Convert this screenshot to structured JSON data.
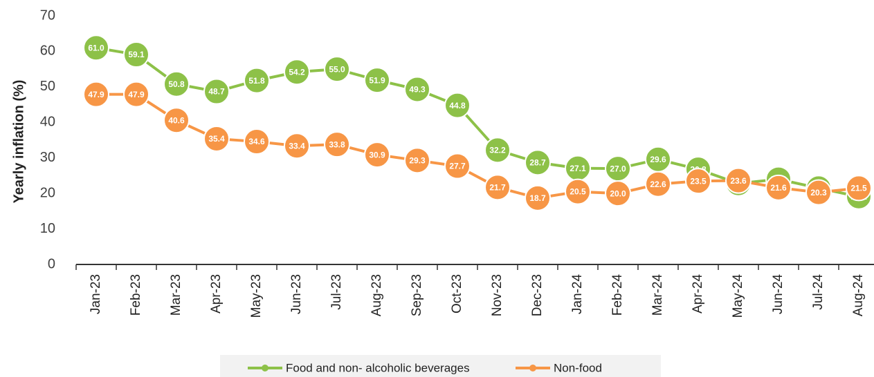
{
  "chart_data": {
    "type": "line",
    "y_label": "Yearly inflation (%)",
    "categories": [
      "Jan-23",
      "Feb-23",
      "Mar-23",
      "Apr-23",
      "May-23",
      "Jun-23",
      "Jul-23",
      "Aug-23",
      "Sep-23",
      "Oct-23",
      "Nov-23",
      "Dec-23",
      "Jan-24",
      "Feb-24",
      "Mar-24",
      "Apr-24",
      "May-24",
      "Jun-24",
      "Jul-24",
      "Aug-24"
    ],
    "series": [
      {
        "name": "Food and non- alcoholic beverages",
        "color": "#8dc148",
        "values": [
          61.0,
          59.1,
          50.8,
          48.7,
          51.8,
          54.2,
          55.0,
          51.9,
          49.3,
          44.8,
          32.2,
          28.7,
          27.1,
          27.0,
          29.6,
          26.8,
          22.8,
          24.0,
          21.5,
          19.1
        ],
        "value_labels": [
          "61.0",
          "59.1",
          "50.8",
          "48.7",
          "51.8",
          "54.2",
          "55.0",
          "51.9",
          "49.3",
          "44.8",
          "32.2",
          "28.7",
          "27.1",
          "27.0",
          "29.6",
          "26.8",
          "22.8",
          "24.0",
          "21.5",
          "19.1"
        ]
      },
      {
        "name": "Non-food",
        "color": "#f79646",
        "values": [
          47.9,
          47.9,
          40.6,
          35.4,
          34.6,
          33.4,
          33.8,
          30.9,
          29.3,
          27.7,
          21.7,
          18.7,
          20.5,
          20.0,
          22.6,
          23.5,
          23.6,
          21.6,
          20.3,
          21.5
        ],
        "value_labels": [
          "47.9",
          "47.9",
          "40.6",
          "35.4",
          "34.6",
          "33.4",
          "33.8",
          "30.9",
          "29.3",
          "27.7",
          "21.7",
          "18.7",
          "20.5",
          "20.0",
          "22.6",
          "23.5",
          "23.6",
          "21.6",
          "20.3",
          "21.5"
        ]
      }
    ],
    "ylim": [
      0,
      70
    ],
    "yticks": [
      0,
      10,
      20,
      30,
      40,
      50,
      60,
      70
    ],
    "grid": false,
    "legend": "bottom"
  }
}
